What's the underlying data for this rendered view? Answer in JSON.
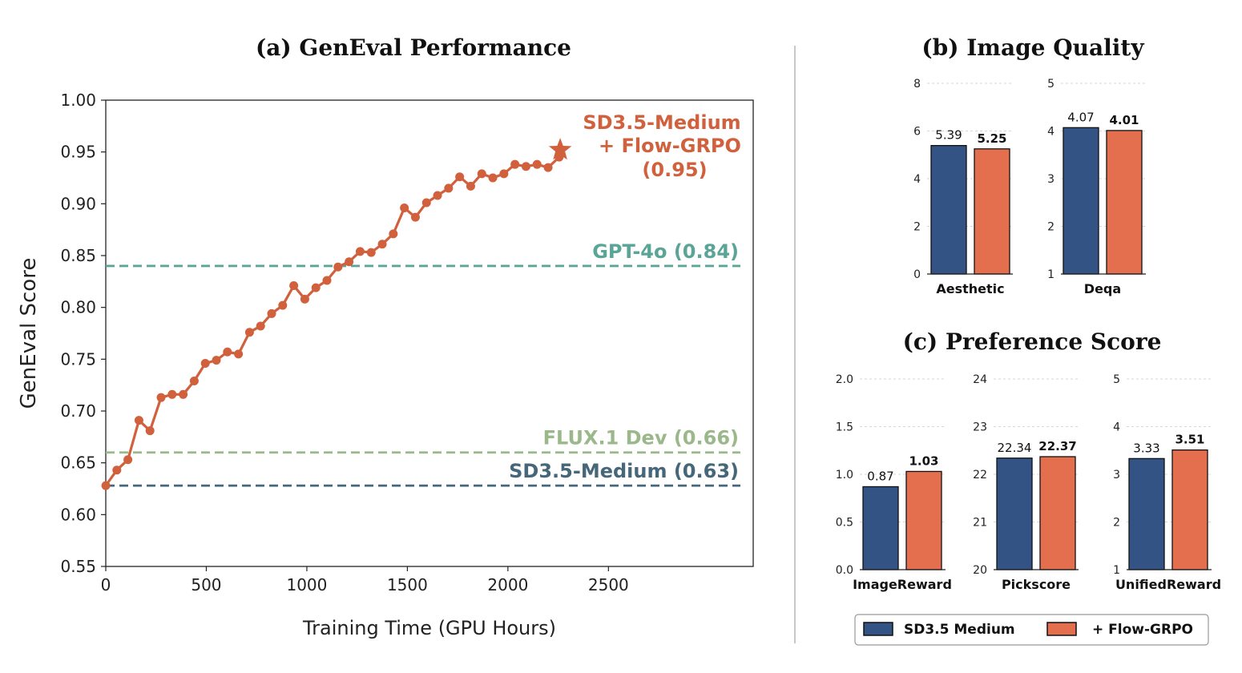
{
  "chart_data": [
    {
      "type": "line",
      "title": "(a) GenEval Performance",
      "xlabel": "Training Time (GPU Hours)",
      "ylabel": "GenEval Score",
      "xlim": [
        0,
        3220
      ],
      "ylim": [
        0.55,
        1.0
      ],
      "xticks": [
        "0",
        "500",
        "1000",
        "1500",
        "2000",
        "2500"
      ],
      "yticks": [
        "0.55",
        "0.60",
        "0.65",
        "0.70",
        "0.75",
        "0.80",
        "0.85",
        "0.90",
        "0.95",
        "1.00"
      ],
      "grid": false,
      "series": [
        {
          "name": "SD3.5-Medium + Flow-GRPO",
          "color": "#d1603d",
          "x": [
            0,
            55,
            110,
            165,
            220,
            275,
            330,
            385,
            440,
            495,
            550,
            605,
            660,
            715,
            770,
            825,
            880,
            935,
            990,
            1045,
            1100,
            1155,
            1210,
            1265,
            1320,
            1375,
            1430,
            1485,
            1540,
            1595,
            1650,
            1705,
            1760,
            1815,
            1870,
            1925,
            1980,
            2035,
            2090,
            2145,
            2200,
            2255,
            2260
          ],
          "y": [
            0.628,
            0.643,
            0.653,
            0.691,
            0.681,
            0.713,
            0.716,
            0.716,
            0.729,
            0.746,
            0.749,
            0.757,
            0.755,
            0.776,
            0.782,
            0.794,
            0.802,
            0.821,
            0.808,
            0.819,
            0.826,
            0.839,
            0.844,
            0.854,
            0.853,
            0.861,
            0.871,
            0.896,
            0.887,
            0.901,
            0.908,
            0.915,
            0.926,
            0.917,
            0.929,
            0.925,
            0.929,
            0.938,
            0.936,
            0.938,
            0.935,
            0.945,
            0.952
          ]
        }
      ],
      "reference_lines": [
        {
          "label": "GPT-4o (0.84)",
          "value": 0.84,
          "color": "#5aa597"
        },
        {
          "label": "FLUX.1 Dev (0.66)",
          "value": 0.66,
          "color": "#9ab88a"
        },
        {
          "label": "SD3.5-Medium (0.63)",
          "value": 0.628,
          "color": "#46667a"
        }
      ],
      "final_annotation": [
        "SD3.5-Medium",
        "+ Flow-GRPO",
        "(0.95)"
      ]
    },
    {
      "type": "bar",
      "title": "(b) Image Quality",
      "panels": [
        {
          "category": "Aesthetic",
          "ylim": [
            0,
            8
          ],
          "yticks": [
            "0",
            "2",
            "4",
            "6",
            "8"
          ],
          "values": [
            5.39,
            5.25
          ],
          "labels": [
            "5.39",
            "5.25"
          ]
        },
        {
          "category": "Deqa",
          "ylim": [
            1,
            5
          ],
          "yticks": [
            "1",
            "2",
            "3",
            "4",
            "5"
          ],
          "values": [
            4.07,
            4.01
          ],
          "labels": [
            "4.07",
            "4.01"
          ]
        }
      ]
    },
    {
      "type": "bar",
      "title": "(c) Preference Score",
      "panels": [
        {
          "category": "ImageReward",
          "ylim": [
            0,
            2
          ],
          "yticks": [
            "0.0",
            "0.5",
            "1.0",
            "1.5",
            "2.0"
          ],
          "values": [
            0.87,
            1.03
          ],
          "labels": [
            "0.87",
            "1.03"
          ]
        },
        {
          "category": "Pickscore",
          "ylim": [
            20,
            24
          ],
          "yticks": [
            "20",
            "21",
            "22",
            "23",
            "24"
          ],
          "values": [
            22.34,
            22.37
          ],
          "labels": [
            "22.34",
            "22.37"
          ]
        },
        {
          "category": "UnifiedReward",
          "ylim": [
            1,
            5
          ],
          "yticks": [
            "1",
            "2",
            "3",
            "4",
            "5"
          ],
          "values": [
            3.33,
            3.51
          ],
          "labels": [
            "3.33",
            "3.51"
          ]
        }
      ]
    }
  ],
  "legend": {
    "position": "bottom-right",
    "items": [
      {
        "label": "SD3.5 Medium",
        "color": "#325384"
      },
      {
        "label": "+ Flow-GRPO",
        "color": "#e36f4f"
      }
    ]
  }
}
